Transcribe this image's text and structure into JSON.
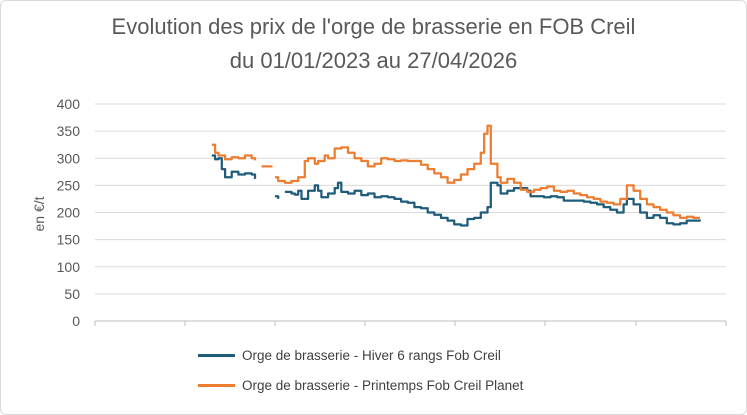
{
  "chart_data": {
    "type": "line",
    "title": "Evolution des prix de l'orge de brasserie en FOB Creil",
    "subtitle": "du 01/01/2023 au 27/04/2026",
    "ylabel": "en €/t",
    "xlabel": "",
    "ylim": [
      0,
      400
    ],
    "yticks": [
      "0",
      "50",
      "100",
      "150",
      "200",
      "250",
      "300",
      "350",
      "400"
    ],
    "grid": true,
    "legend_position": "bottom",
    "x_range": [
      "2023-01-01",
      "2026-04-27"
    ],
    "series": [
      {
        "name": "Orge de brasserie - Hiver 6 rangs Fob Creil",
        "color": "#1f5c7a",
        "segments": [
          [
            [
              "2023-07-03",
              305
            ],
            [
              "2023-07-10",
              298
            ],
            [
              "2023-07-17",
              300
            ],
            [
              "2023-07-24",
              280
            ],
            [
              "2023-07-31",
              265
            ],
            [
              "2023-08-14",
              275
            ],
            [
              "2023-08-28",
              270
            ],
            [
              "2023-09-11",
              272
            ],
            [
              "2023-09-25",
              270
            ],
            [
              "2023-10-02",
              262
            ]
          ],
          [
            [
              "2023-11-13",
              230
            ],
            [
              "2023-11-20",
              225
            ]
          ],
          [
            [
              "2023-12-04",
              238
            ],
            [
              "2023-12-18",
              235
            ],
            [
              "2023-12-25",
              233
            ],
            [
              "2024-01-01",
              240
            ],
            [
              "2024-01-08",
              225
            ],
            [
              "2024-01-22",
              240
            ],
            [
              "2024-02-05",
              250
            ],
            [
              "2024-02-12",
              240
            ],
            [
              "2024-02-19",
              228
            ],
            [
              "2024-03-04",
              235
            ],
            [
              "2024-03-18",
              245
            ],
            [
              "2024-03-25",
              255
            ],
            [
              "2024-04-01",
              238
            ],
            [
              "2024-04-15",
              235
            ],
            [
              "2024-04-29",
              240
            ],
            [
              "2024-05-13",
              232
            ],
            [
              "2024-05-27",
              235
            ],
            [
              "2024-06-10",
              228
            ],
            [
              "2024-06-24",
              230
            ],
            [
              "2024-07-08",
              228
            ],
            [
              "2024-07-22",
              225
            ],
            [
              "2024-08-05",
              220
            ],
            [
              "2024-08-19",
              218
            ],
            [
              "2024-09-02",
              210
            ],
            [
              "2024-09-16",
              208
            ],
            [
              "2024-09-30",
              200
            ],
            [
              "2024-10-14",
              196
            ],
            [
              "2024-10-28",
              190
            ],
            [
              "2024-11-11",
              185
            ],
            [
              "2024-11-25",
              178
            ],
            [
              "2024-12-09",
              176
            ],
            [
              "2024-12-23",
              188
            ],
            [
              "2025-01-06",
              190
            ],
            [
              "2025-01-20",
              200
            ],
            [
              "2025-02-03",
              210
            ],
            [
              "2025-02-10",
              255
            ],
            [
              "2025-02-24",
              250
            ],
            [
              "2025-03-03",
              235
            ],
            [
              "2025-03-17",
              240
            ],
            [
              "2025-03-31",
              245
            ],
            [
              "2025-04-14",
              245
            ],
            [
              "2025-04-28",
              240
            ],
            [
              "2025-05-05",
              230
            ],
            [
              "2025-05-19",
              230
            ],
            [
              "2025-06-02",
              228
            ],
            [
              "2025-06-16",
              230
            ],
            [
              "2025-06-30",
              228
            ],
            [
              "2025-07-14",
              222
            ],
            [
              "2025-07-28",
              222
            ],
            [
              "2025-08-11",
              222
            ],
            [
              "2025-08-25",
              220
            ],
            [
              "2025-09-08",
              218
            ],
            [
              "2025-09-22",
              215
            ],
            [
              "2025-10-06",
              210
            ],
            [
              "2025-10-20",
              205
            ],
            [
              "2025-11-03",
              200
            ],
            [
              "2025-11-17",
              215
            ],
            [
              "2025-11-24",
              225
            ],
            [
              "2025-12-08",
              215
            ],
            [
              "2025-12-22",
              200
            ],
            [
              "2026-01-05",
              190
            ],
            [
              "2026-01-19",
              195
            ],
            [
              "2026-02-02",
              190
            ],
            [
              "2026-02-16",
              180
            ],
            [
              "2026-03-02",
              178
            ],
            [
              "2026-03-16",
              180
            ],
            [
              "2026-03-30",
              185
            ],
            [
              "2026-04-13",
              185
            ],
            [
              "2026-04-27",
              184
            ]
          ]
        ]
      },
      {
        "name": "Orge de brasserie - Printemps Fob Creil Planet",
        "color": "#ed7d31",
        "segments": [
          [
            [
              "2023-07-03",
              325
            ],
            [
              "2023-07-10",
              310
            ],
            [
              "2023-07-17",
              305
            ],
            [
              "2023-07-31",
              298
            ],
            [
              "2023-08-14",
              302
            ],
            [
              "2023-08-28",
              300
            ],
            [
              "2023-09-11",
              305
            ],
            [
              "2023-09-25",
              300
            ],
            [
              "2023-10-02",
              296
            ]
          ],
          [
            [
              "2023-10-16",
              285
            ],
            [
              "2023-11-06",
              286
            ]
          ],
          [
            [
              "2023-11-13",
              265
            ],
            [
              "2023-11-20",
              258
            ],
            [
              "2023-12-04",
              255
            ],
            [
              "2023-12-18",
              258
            ],
            [
              "2024-01-01",
              265
            ],
            [
              "2024-01-15",
              295
            ],
            [
              "2024-01-22",
              300
            ],
            [
              "2024-02-05",
              290
            ],
            [
              "2024-02-12",
              295
            ],
            [
              "2024-02-26",
              305
            ],
            [
              "2024-03-04",
              300
            ],
            [
              "2024-03-18",
              318
            ],
            [
              "2024-04-01",
              320
            ],
            [
              "2024-04-15",
              310
            ],
            [
              "2024-04-29",
              300
            ],
            [
              "2024-05-13",
              295
            ],
            [
              "2024-05-27",
              285
            ],
            [
              "2024-06-10",
              290
            ],
            [
              "2024-06-24",
              300
            ],
            [
              "2024-07-08",
              298
            ],
            [
              "2024-07-22",
              295
            ],
            [
              "2024-08-05",
              296
            ],
            [
              "2024-08-19",
              295
            ],
            [
              "2024-09-02",
              295
            ],
            [
              "2024-09-16",
              288
            ],
            [
              "2024-09-30",
              280
            ],
            [
              "2024-10-14",
              272
            ],
            [
              "2024-10-28",
              265
            ],
            [
              "2024-11-11",
              255
            ],
            [
              "2024-11-25",
              260
            ],
            [
              "2024-12-09",
              270
            ],
            [
              "2024-12-23",
              280
            ],
            [
              "2025-01-06",
              290
            ],
            [
              "2025-01-20",
              310
            ],
            [
              "2025-01-27",
              345
            ],
            [
              "2025-02-03",
              360
            ],
            [
              "2025-02-10",
              290
            ],
            [
              "2025-02-24",
              265
            ],
            [
              "2025-03-03",
              255
            ],
            [
              "2025-03-17",
              262
            ],
            [
              "2025-03-31",
              255
            ],
            [
              "2025-04-14",
              242
            ],
            [
              "2025-04-28",
              238
            ],
            [
              "2025-05-12",
              242
            ],
            [
              "2025-05-26",
              245
            ],
            [
              "2025-06-09",
              248
            ],
            [
              "2025-06-23",
              240
            ],
            [
              "2025-07-07",
              238
            ],
            [
              "2025-07-21",
              240
            ],
            [
              "2025-08-04",
              235
            ],
            [
              "2025-08-18",
              232
            ],
            [
              "2025-09-01",
              228
            ],
            [
              "2025-09-15",
              225
            ],
            [
              "2025-09-29",
              220
            ],
            [
              "2025-10-13",
              218
            ],
            [
              "2025-10-27",
              215
            ],
            [
              "2025-11-10",
              225
            ],
            [
              "2025-11-24",
              250
            ],
            [
              "2025-12-08",
              240
            ],
            [
              "2025-12-22",
              225
            ],
            [
              "2026-01-05",
              215
            ],
            [
              "2026-01-19",
              210
            ],
            [
              "2026-02-02",
              205
            ],
            [
              "2026-02-16",
              200
            ],
            [
              "2026-03-02",
              195
            ],
            [
              "2026-03-16",
              190
            ],
            [
              "2026-03-30",
              192
            ],
            [
              "2026-04-13",
              190
            ],
            [
              "2026-04-27",
              190
            ]
          ]
        ]
      }
    ]
  }
}
